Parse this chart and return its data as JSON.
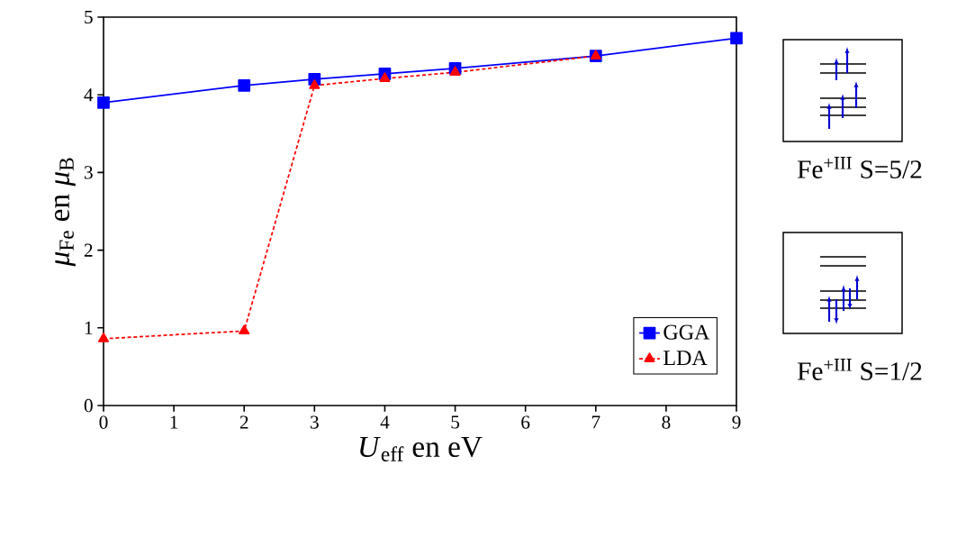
{
  "chart_data": {
    "type": "line",
    "xlabel": "*U*$_{eff}$ en eV",
    "ylabel": "*μ*$_{Fe}$ en *μ*$_{B}$",
    "series": [
      {
        "name": "GGA",
        "color": "#0000ff",
        "marker": "square",
        "line_style": "solid",
        "x": [
          0,
          2,
          3,
          4,
          5,
          7,
          9
        ],
        "values": [
          3.9,
          4.12,
          4.2,
          4.27,
          4.34,
          4.5,
          4.73
        ]
      },
      {
        "name": "LDA",
        "color": "#ff0000",
        "marker": "triangle",
        "line_style": "dashed",
        "x": [
          0,
          2,
          3,
          4,
          5,
          7
        ],
        "values": [
          0.86,
          0.96,
          4.12,
          4.21,
          4.29,
          4.5
        ]
      }
    ],
    "xlim": [
      0,
      9
    ],
    "ylim": [
      0,
      5
    ],
    "xticks": [
      0,
      1,
      2,
      3,
      4,
      5,
      6,
      7,
      8,
      9
    ],
    "yticks": [
      0,
      1,
      2,
      3,
      4,
      5
    ],
    "grid": false,
    "legend": "bottom right",
    "annotations": [
      "Fe$^{+III}$ S=5/2",
      "Fe$^{+III}$ S=1/2"
    ]
  }
}
